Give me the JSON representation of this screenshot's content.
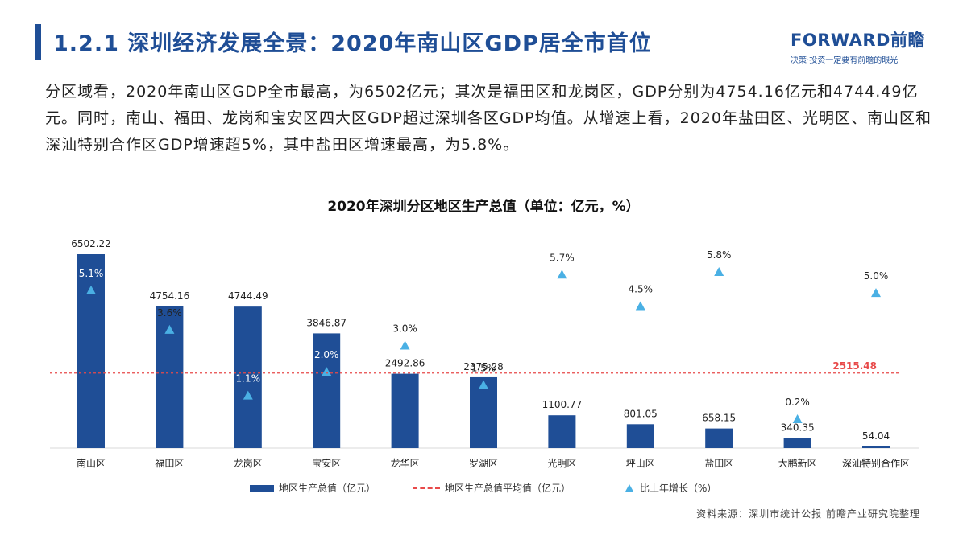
{
  "header": {
    "title": "1.2.1 深圳经济发展全景：2020年南山区GDP居全市首位",
    "logo_main": "FORWARD前瞻",
    "logo_sub": "决策·投资一定要有前瞻的眼光"
  },
  "paragraph": "分区域看，2020年南山区GDP全市最高，为6502亿元；其次是福田区和龙岗区，GDP分别为4754.16亿元和4744.49亿元。同时，南山、福田、龙岗和宝安区四大区GDP超过深圳各区GDP均值。从增速上看，2020年盐田区、光明区、南山区和深汕特别合作区GDP增速超5%，其中盐田区增速最高，为5.8%。",
  "chart_data": {
    "type": "bar",
    "title": "2020年深圳分区地区生产总值（单位：亿元，%）",
    "categories": [
      "南山区",
      "福田区",
      "龙岗区",
      "宝安区",
      "龙华区",
      "罗湖区",
      "光明区",
      "坪山区",
      "盐田区",
      "大鹏新区",
      "深汕特别合作区"
    ],
    "series": [
      {
        "name": "地区生产总值（亿元）",
        "type": "bar",
        "values": [
          6502.22,
          4754.16,
          4744.49,
          3846.87,
          2492.86,
          2375.28,
          1100.77,
          801.05,
          658.15,
          340.35,
          54.04
        ],
        "labels": [
          "6502.22",
          "4754.16",
          "4744.49",
          "3846.87",
          "2492.86",
          "2375.28",
          "1100.77",
          "801.05",
          "658.15",
          "340.35",
          "54.04"
        ]
      },
      {
        "name": "地区生产总值平均值（亿元）",
        "type": "line",
        "value": 2515.48,
        "label": "2515.48"
      },
      {
        "name": "比上年增长（%）",
        "type": "scatter",
        "values": [
          5.1,
          3.6,
          1.1,
          2.0,
          3.0,
          1.5,
          5.7,
          4.5,
          5.8,
          0.2,
          5.0
        ],
        "labels": [
          "5.1%",
          "3.6%",
          "1.1%",
          "2.0%",
          "3.0%",
          "1.5%",
          "5.7%",
          "4.5%",
          "5.8%",
          "0.2%",
          "5.0%"
        ]
      }
    ],
    "legend_position": "bottom",
    "grid": false,
    "colors": {
      "bar": "#1f4e96",
      "avg_line": "#e84a4a",
      "growth_marker": "#4ab0e4"
    }
  },
  "legend": {
    "bar": "地区生产总值（亿元）",
    "avg": "地区生产总值平均值（亿元）",
    "growth": "比上年增长（%）"
  },
  "source": "资料来源：深圳市统计公报 前瞻产业研究院整理"
}
